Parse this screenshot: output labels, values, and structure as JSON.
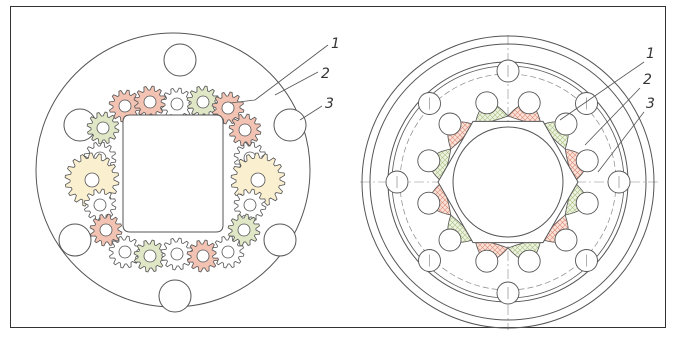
{
  "figure": {
    "left_view": {
      "labels": [
        {
          "id": "1",
          "text": "1"
        },
        {
          "id": "2",
          "text": "2"
        },
        {
          "id": "3",
          "text": "3"
        }
      ]
    },
    "right_view": {
      "labels": [
        {
          "id": "1",
          "text": "1"
        },
        {
          "id": "2",
          "text": "2"
        },
        {
          "id": "3",
          "text": "3"
        }
      ]
    }
  },
  "colors": {
    "line": "#555555",
    "border": "#333333",
    "pink": "#f2c3b3",
    "green": "#dfe7c7",
    "yellow": "#faefcf",
    "hatch_red": "#d98a75",
    "hatch_green": "#a8bf85"
  }
}
